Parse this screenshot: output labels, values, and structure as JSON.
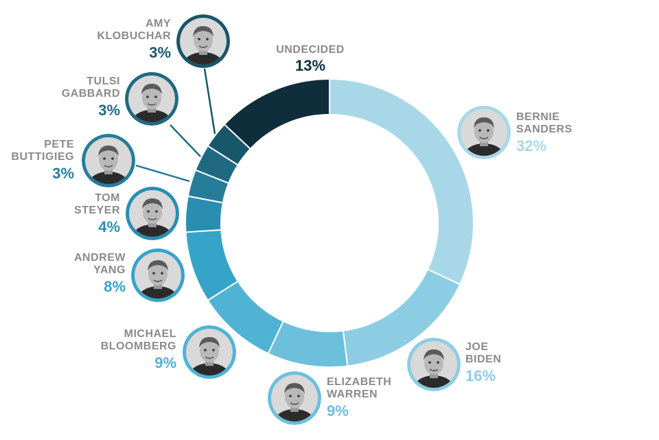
{
  "chart_data": {
    "type": "pie",
    "style": "donut",
    "slices": [
      {
        "name": "BERNIE SANDERS",
        "line1": "BERNIE",
        "line2": "SANDERS",
        "value": 32,
        "label": "32%",
        "color": "#a8d8e8"
      },
      {
        "name": "JOE BIDEN",
        "line1": "JOE",
        "line2": "BIDEN",
        "value": 16,
        "label": "16%",
        "color": "#8ccde3"
      },
      {
        "name": "ELIZABETH WARREN",
        "line1": "ELIZABETH",
        "line2": "WARREN",
        "value": 9,
        "label": "9%",
        "color": "#6cc0dc"
      },
      {
        "name": "MICHAEL BLOOMBERG",
        "line1": "MICHAEL",
        "line2": "BLOOMBERG",
        "value": 9,
        "label": "9%",
        "color": "#50b3d4"
      },
      {
        "name": "ANDREW YANG",
        "line1": "ANDREW",
        "line2": "YANG",
        "value": 8,
        "label": "8%",
        "color": "#36a4c9"
      },
      {
        "name": "TOM STEYER",
        "line1": "TOM",
        "line2": "STEYER",
        "value": 4,
        "label": "4%",
        "color": "#2a8eb0"
      },
      {
        "name": "PETE BUTTIGIEG",
        "line1": "PETE",
        "line2": "BUTTIGIEG",
        "value": 3,
        "label": "3%",
        "color": "#267d9a"
      },
      {
        "name": "TULSI GABBARD",
        "line1": "TULSI",
        "line2": "GABBARD",
        "value": 3,
        "label": "3%",
        "color": "#1f6a82"
      },
      {
        "name": "AMY KLOBUCHAR",
        "line1": "AMY",
        "line2": "KLOBUCHAR",
        "value": 3,
        "label": "3%",
        "color": "#18566a"
      },
      {
        "name": "UNDECIDED",
        "line1": "UNDECIDED",
        "line2": "",
        "value": 13,
        "label": "13%",
        "color": "#0f2d3a"
      }
    ]
  }
}
